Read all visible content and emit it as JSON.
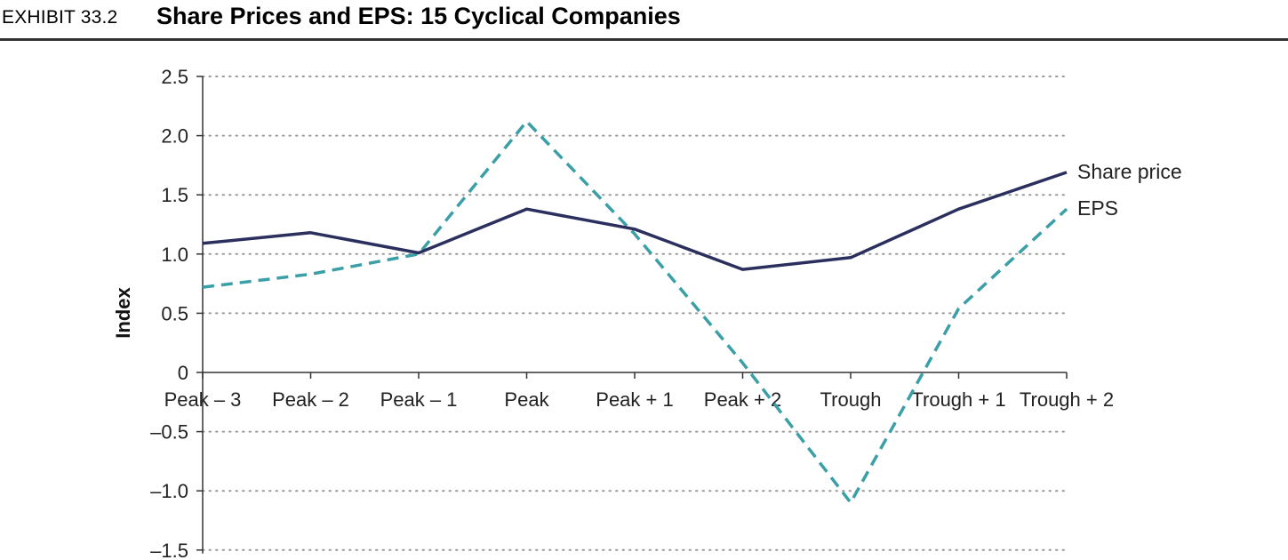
{
  "header": {
    "exhibit": "EXHIBIT 33.2",
    "title": "Share Prices and EPS: 15 Cyclical Companies"
  },
  "chart_data": {
    "type": "line",
    "ylabel": "Index",
    "xlabel": "",
    "ylim": [
      -1.5,
      2.5
    ],
    "yticks": [
      2.5,
      2.0,
      1.5,
      1.0,
      0.5,
      0,
      -0.5,
      -1.0,
      -1.5
    ],
    "ytick_labels": [
      "2.5",
      "2.0",
      "1.5",
      "1.0",
      "0.5",
      "0",
      "–0.5",
      "–1.0",
      "–1.5"
    ],
    "grid": "horizontal dotted",
    "categories": [
      "Peak – 3",
      "Peak – 2",
      "Peak – 1",
      "Peak",
      "Peak + 1",
      "Peak + 2",
      "Trough",
      "Trough + 1",
      "Trough + 2"
    ],
    "series": [
      {
        "name": "Share price",
        "color": "#2b2f5e",
        "style": "solid",
        "values": [
          1.09,
          1.18,
          1.01,
          1.38,
          1.21,
          0.87,
          0.97,
          1.38,
          1.69
        ]
      },
      {
        "name": "EPS",
        "color": "#3a9fa6",
        "style": "dashed",
        "values": [
          0.72,
          0.83,
          1.0,
          2.12,
          1.17,
          0.08,
          -1.1,
          0.54,
          1.38
        ]
      }
    ]
  }
}
